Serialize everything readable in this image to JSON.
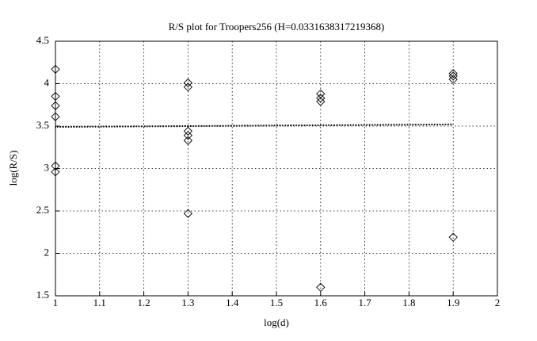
{
  "chart_data": {
    "type": "scatter",
    "title": "R/S plot for Troopers256 (H=0.0331638317219368)",
    "xlabel": "log(d)",
    "ylabel": "log(R/S)",
    "xlim": [
      1,
      2
    ],
    "ylim": [
      1.5,
      4.5
    ],
    "xticks": [
      1,
      1.1,
      1.2,
      1.3,
      1.4,
      1.5,
      1.6,
      1.7,
      1.8,
      1.9,
      2
    ],
    "yticks": [
      1.5,
      2,
      2.5,
      3,
      3.5,
      4,
      4.5
    ],
    "grid": true,
    "series": [
      {
        "type": "scatter",
        "marker": "diamond",
        "color": "#000000",
        "x": [
          1,
          1,
          1,
          1,
          1,
          1,
          1.3,
          1.3,
          1.3,
          1.3,
          1.3,
          1.3,
          1.6,
          1.6,
          1.6,
          1.6,
          1.9,
          1.9,
          1.9,
          1.9
        ],
        "values": [
          4.17,
          3.85,
          3.74,
          3.61,
          3.03,
          2.96,
          4.01,
          3.96,
          3.44,
          3.39,
          3.33,
          2.47,
          3.88,
          3.83,
          3.79,
          1.6,
          4.12,
          4.09,
          4.05,
          2.19
        ]
      },
      {
        "type": "line",
        "linestyle": "dotted",
        "color": "#000000",
        "x": [
          1,
          1.9
        ],
        "values": [
          3.49,
          3.52
        ]
      }
    ]
  }
}
